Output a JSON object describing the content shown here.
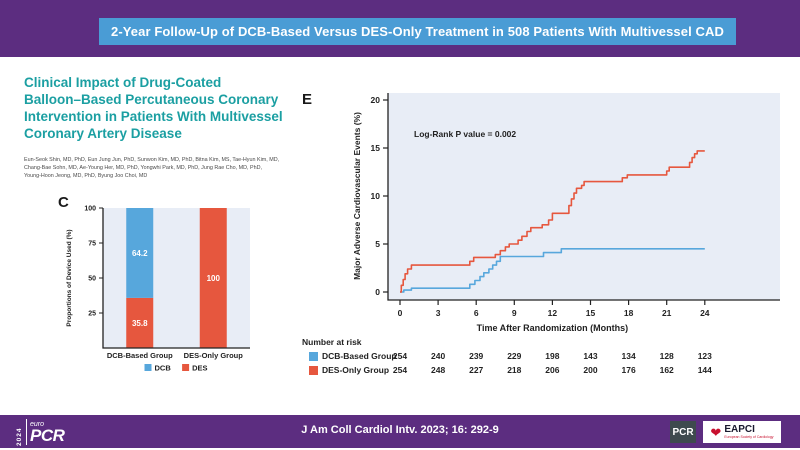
{
  "header": {
    "title": "2-Year Follow-Up of DCB-Based Versus DES-Only Treatment in 508 Patients With Multivessel CAD"
  },
  "paper": {
    "title_lines": [
      "Clinical Impact of Drug-Coated",
      "Balloon–Based Percutaneous Coronary",
      "Intervention in Patients With Multivessel",
      "Coronary Artery Disease"
    ],
    "author_lines": [
      "Eun-Seok Shin, MD, PhD, Eun Jung Jun, PhD, Sunwon Kim, MD, PhD, Bitna Kim, MS, Tae-Hyun Kim, MD,",
      "Chang-Bae Sohn, MD, Ae-Young Her, MD, PhD, Yongwhi Park, MD, PhD, Jung Rae Cho, MD, PhD,",
      "Young-Hoon Jeong, MD, PhD, Byung Joo Choi, MD"
    ]
  },
  "colors": {
    "purple": "#5C2D80",
    "header_blue": "#4A9CD5",
    "teal": "#1B9FA2",
    "dcb_blue": "#57A7DC",
    "des_red": "#E6573E",
    "plot_bg": "#E8EDF6",
    "axis": "#222222"
  },
  "chart_data": [
    {
      "panel": "C",
      "type": "bar",
      "stacked": true,
      "categories": [
        "DCB-Based Group",
        "DES-Only Group"
      ],
      "series": [
        {
          "name": "DCB",
          "color": "#57A7DC",
          "values": [
            64.2,
            0
          ]
        },
        {
          "name": "DES",
          "color": "#E6573E",
          "values": [
            35.8,
            100
          ]
        }
      ],
      "ylabel": "Proportions of Device Used (%)",
      "yticks": [
        25,
        50,
        75,
        100
      ],
      "ylim": [
        0,
        100
      ],
      "legend": [
        "DCB",
        "DES"
      ],
      "legend_position": "bottom"
    },
    {
      "panel": "E",
      "type": "line",
      "step": true,
      "annotation": "Log-Rank P value = 0.002",
      "xlabel": "Time After Randomization (Months)",
      "ylabel": "Major Adverse Cardiovascular Events (%)",
      "xticks": [
        0,
        3,
        6,
        9,
        12,
        15,
        18,
        21,
        24
      ],
      "xlim": [
        0,
        24
      ],
      "ylim": [
        0,
        20
      ],
      "yticks": [
        0,
        5,
        10,
        15,
        20
      ],
      "series": [
        {
          "name": "DCB-Based Group",
          "color": "#57A7DC",
          "points": [
            [
              0,
              0
            ],
            [
              0.3,
              0.2
            ],
            [
              0.9,
              0.4
            ],
            [
              5.5,
              0.8
            ],
            [
              5.9,
              1.2
            ],
            [
              6.3,
              1.6
            ],
            [
              6.6,
              2.0
            ],
            [
              7.0,
              2.4
            ],
            [
              7.3,
              2.8
            ],
            [
              7.6,
              3.2
            ],
            [
              7.9,
              3.7
            ],
            [
              11.3,
              4.1
            ],
            [
              12.7,
              4.5
            ],
            [
              24,
              4.5
            ]
          ]
        },
        {
          "name": "DES-Only Group",
          "color": "#E6573E",
          "points": [
            [
              0,
              0
            ],
            [
              0.1,
              0.7
            ],
            [
              0.25,
              1.3
            ],
            [
              0.4,
              1.9
            ],
            [
              0.6,
              2.4
            ],
            [
              0.9,
              2.8
            ],
            [
              5.5,
              3.2
            ],
            [
              5.8,
              3.6
            ],
            [
              7.5,
              3.9
            ],
            [
              7.9,
              4.3
            ],
            [
              8.3,
              4.7
            ],
            [
              8.6,
              5.0
            ],
            [
              9.3,
              5.4
            ],
            [
              9.6,
              5.8
            ],
            [
              10.0,
              6.3
            ],
            [
              10.3,
              6.7
            ],
            [
              11.2,
              7.0
            ],
            [
              11.7,
              7.5
            ],
            [
              12.0,
              8.2
            ],
            [
              13.3,
              9.0
            ],
            [
              13.5,
              9.7
            ],
            [
              13.7,
              10.3
            ],
            [
              13.9,
              10.8
            ],
            [
              14.3,
              11.1
            ],
            [
              14.5,
              11.5
            ],
            [
              17.5,
              11.9
            ],
            [
              17.9,
              12.2
            ],
            [
              21.0,
              12.6
            ],
            [
              21.2,
              13.0
            ],
            [
              22.8,
              13.5
            ],
            [
              23.0,
              14.0
            ],
            [
              23.2,
              14.4
            ],
            [
              23.4,
              14.7
            ],
            [
              24,
              14.7
            ]
          ]
        }
      ],
      "risk_table": {
        "title": "Number at risk",
        "rows": [
          {
            "label": "DCB-Based Group",
            "color": "#57A7DC",
            "values": [
              254,
              240,
              239,
              229,
              198,
              143,
              134,
              128,
              123
            ]
          },
          {
            "label": "DES-Only Group",
            "color": "#E6573E",
            "values": [
              254,
              248,
              227,
              218,
              206,
              200,
              176,
              162,
              144
            ]
          }
        ]
      }
    }
  ],
  "footer": {
    "citation": "J Am Coll Cardiol Intv. 2023; 16: 292-9",
    "europcr": {
      "year": "2024",
      "euro": "euro",
      "pcr": "PCR"
    },
    "pcr_logo": "PCR",
    "eapci": {
      "name": "EAPCI",
      "subtext": "European Society of Cardiology"
    }
  }
}
